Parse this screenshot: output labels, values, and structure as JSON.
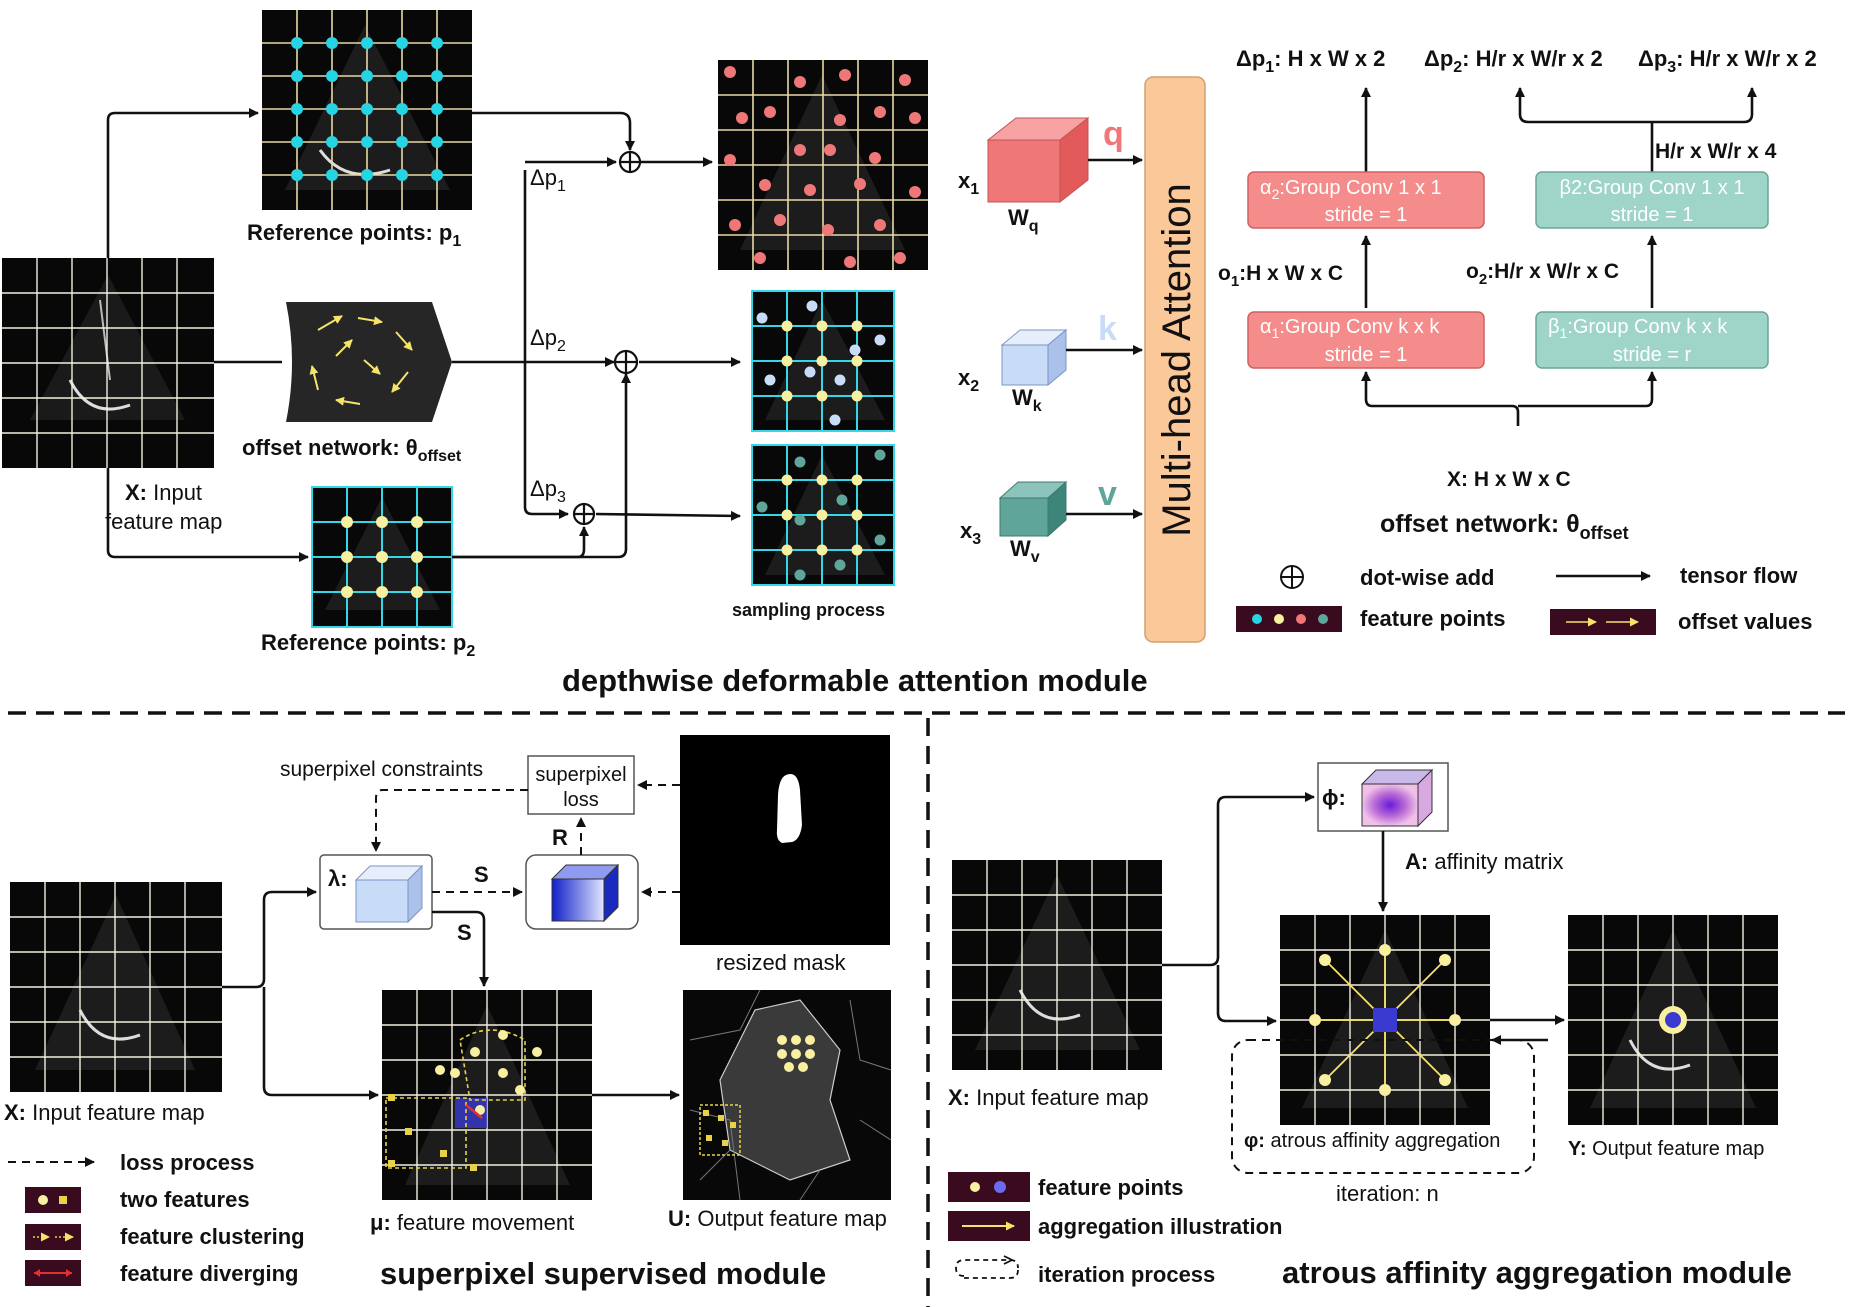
{
  "top": {
    "ref_points_p1": "Reference points: p",
    "ref_points_p1_sub": "1",
    "offset_network_left": "offset network: θ",
    "offset_network_left_sub": "offset",
    "input_label_bold": "X:",
    "input_label_rest": " Input",
    "input_label_line2": "feature map",
    "ref_points_p2": "Reference points: p",
    "ref_points_p2_sub": "2",
    "sampling_process": "sampling process",
    "dp1": "Δp",
    "dp1_sub": "1",
    "dp2": "Δp",
    "dp2_sub": "2",
    "dp3": "Δp",
    "dp3_sub": "3",
    "x1": "x",
    "x1_sub": "1",
    "x2": "x",
    "x2_sub": "2",
    "x3": "x",
    "x3_sub": "3",
    "wq": "W",
    "wq_sub": "q",
    "wk": "W",
    "wk_sub": "k",
    "wv": "W",
    "wv_sub": "v",
    "q": "q",
    "k": "k",
    "v": "v",
    "mha": "Multi-head Attention",
    "module_title": "depthwise deformable attention module"
  },
  "offset_net": {
    "out1": "Δp",
    "out1_sub": "1",
    "out1_rest": ": H x W x 2",
    "out2": "Δp",
    "out2_sub": "2",
    "out2_rest": ": H/r x W/r x 2",
    "out3": "Δp",
    "out3_sub": "3",
    "out3_rest": ": H/r x W/r x 2",
    "a2_l1_pre": "α",
    "a2_l1_sub": "2",
    "a2_l1_rest": ":Group Conv 1 x 1",
    "a2_l2": "stride = 1",
    "b2_l1": "β2:Group Conv 1 x 1",
    "b2_l2": "stride = 1",
    "a1_l1_pre": "α",
    "a1_l1_sub": "1",
    "a1_l1_rest": ":Group Conv k x k",
    "a1_l2": "stride = 1",
    "b1_l1_pre": "β",
    "b1_l1_sub": "1",
    "b1_l1_rest": ":Group Conv k x k",
    "b1_l2": "stride = r",
    "o1_pre": "o",
    "o1_sub": "1",
    "o1_rest": ":H x W x C",
    "o2_pre": "o",
    "o2_sub": "2",
    "o2_rest": ":H/r x W/r x C",
    "h4": "H/r x W/r x 4",
    "xin": "X: H x W x C",
    "title_pre": "offset network: θ",
    "title_sub": "offset"
  },
  "legend_top": {
    "add": "dot-wise add",
    "flow": "tensor flow",
    "points": "feature points",
    "offset": "offset values"
  },
  "superpixel": {
    "constraints": "superpixel constraints",
    "loss_l1": "superpixel",
    "loss_l2": "loss",
    "r": "R",
    "s1": "S",
    "s2": "S",
    "lambda": "λ:",
    "resized_mask": "resized mask",
    "input_bold": "X:",
    "input_rest": " Input feature map",
    "mu_bold": "μ:",
    "mu_rest": " feature movement",
    "u_bold": "U:",
    "u_rest": " Output feature map",
    "legend_loss": "loss process",
    "legend_two": "two features",
    "legend_cluster": "feature clustering",
    "legend_diverge": "feature diverging",
    "title": "superpixel supervised module"
  },
  "atrous": {
    "phi": "ϕ:",
    "a_bold": "A:",
    "a_rest": " affinity matrix",
    "input_bold": "X:",
    "input_rest": " Input feature map",
    "varphi_bold": "φ:",
    "varphi_rest": " atrous affinity aggregation",
    "iteration": "iteration: n",
    "y_bold": "Y:",
    "y_rest": " Output feature map",
    "legend_points": "feature points",
    "legend_agg": "aggregation illustration",
    "legend_iter": "iteration process",
    "title": "atrous affinity aggregation module"
  },
  "colors": {
    "q_red": "#f07777",
    "k_blue": "#c9dcf7",
    "v_teal": "#5fa59a",
    "mha_orange": "#fbc89a",
    "alpha_box": "#f58c8c",
    "beta_box": "#9fd4c9",
    "cyan_point": "#26d4e3",
    "yellow_point": "#f8f0a0",
    "dark_legend": "#3a0a1e"
  }
}
